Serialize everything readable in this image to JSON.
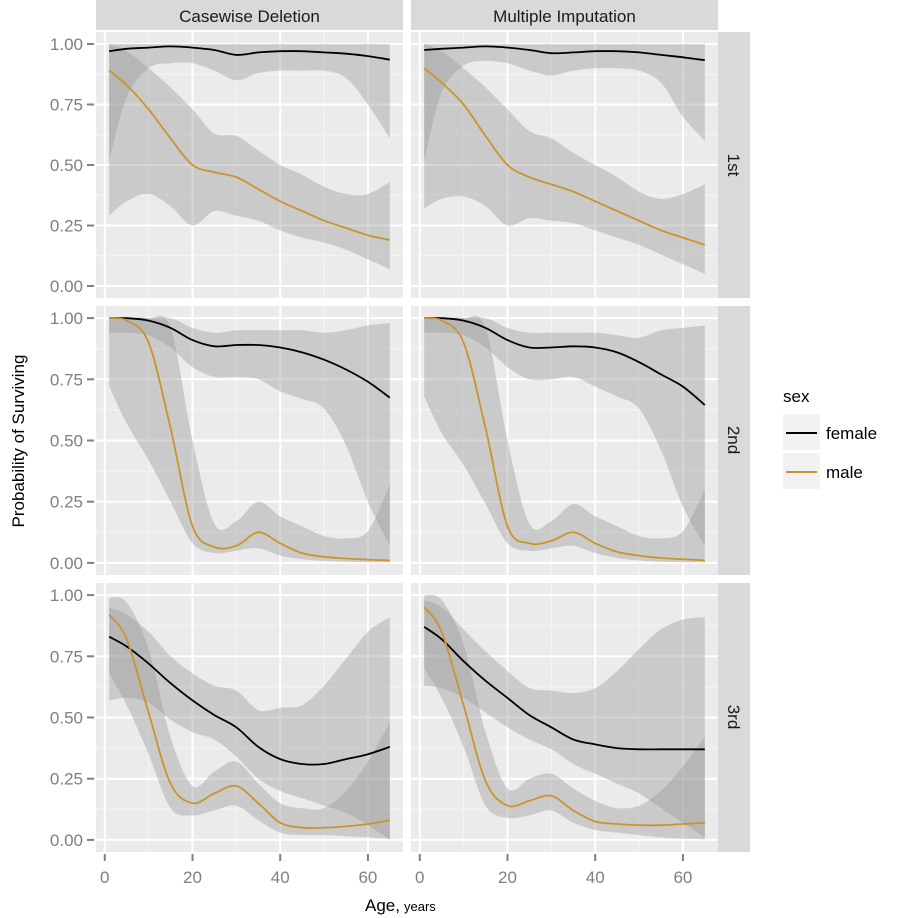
{
  "chart_data": {
    "type": "line",
    "title": "",
    "xlabel": "Age,",
    "xlabel_unit": "years",
    "ylabel": "Probability of Surviving",
    "xlim": [
      -2,
      68
    ],
    "ylim": [
      0,
      1
    ],
    "x_ticks": [
      0,
      20,
      40,
      60
    ],
    "x_tick_labels": [
      "0",
      "20",
      "40",
      "60"
    ],
    "y_ticks": [
      0,
      0.25,
      0.5,
      0.75,
      1.0
    ],
    "y_tick_labels": [
      "0.00",
      "0.25",
      "0.50",
      "0.75",
      "1.00"
    ],
    "grid": true,
    "facet_columns": [
      "Casewise Deletion",
      "Multiple Imputation"
    ],
    "facet_rows": [
      "1st",
      "2nd",
      "3rd"
    ],
    "legend": {
      "title": "sex",
      "position": "right",
      "entries": [
        {
          "name": "female",
          "color": "#000000"
        },
        {
          "name": "male",
          "color": "#C8952D"
        }
      ]
    },
    "x": [
      1,
      5,
      10,
      15,
      20,
      25,
      30,
      35,
      40,
      45,
      50,
      55,
      60,
      65
    ],
    "panels": [
      {
        "column": "Casewise Deletion",
        "row": "1st",
        "series": [
          {
            "name": "female",
            "values": [
              0.97,
              0.98,
              0.985,
              0.99,
              0.985,
              0.975,
              0.955,
              0.965,
              0.97,
              0.97,
              0.965,
              0.96,
              0.95,
              0.935
            ],
            "lower": [
              0.52,
              0.78,
              0.9,
              0.92,
              0.92,
              0.89,
              0.85,
              0.88,
              0.89,
              0.89,
              0.89,
              0.86,
              0.75,
              0.61
            ],
            "upper": [
              1.0,
              1.0,
              1.0,
              1.0,
              1.0,
              1.0,
              1.0,
              1.0,
              1.0,
              1.0,
              1.0,
              1.0,
              1.0,
              1.0
            ]
          },
          {
            "name": "male",
            "values": [
              0.89,
              0.83,
              0.73,
              0.61,
              0.5,
              0.47,
              0.45,
              0.4,
              0.35,
              0.31,
              0.27,
              0.24,
              0.21,
              0.19
            ],
            "lower": [
              0.29,
              0.35,
              0.38,
              0.33,
              0.25,
              0.31,
              0.29,
              0.27,
              0.23,
              0.2,
              0.18,
              0.15,
              0.11,
              0.07
            ],
            "upper": [
              1.0,
              0.97,
              0.9,
              0.82,
              0.73,
              0.63,
              0.62,
              0.56,
              0.5,
              0.46,
              0.41,
              0.38,
              0.38,
              0.43
            ]
          }
        ]
      },
      {
        "column": "Multiple Imputation",
        "row": "1st",
        "series": [
          {
            "name": "female",
            "values": [
              0.975,
              0.98,
              0.985,
              0.99,
              0.985,
              0.975,
              0.962,
              0.965,
              0.97,
              0.97,
              0.965,
              0.955,
              0.945,
              0.933
            ],
            "lower": [
              0.52,
              0.8,
              0.91,
              0.93,
              0.92,
              0.89,
              0.87,
              0.89,
              0.9,
              0.9,
              0.89,
              0.84,
              0.7,
              0.6
            ],
            "upper": [
              1.0,
              1.0,
              1.0,
              1.0,
              1.0,
              1.0,
              1.0,
              1.0,
              1.0,
              1.0,
              1.0,
              1.0,
              1.0,
              1.0
            ]
          },
          {
            "name": "male",
            "values": [
              0.9,
              0.84,
              0.75,
              0.62,
              0.5,
              0.45,
              0.42,
              0.39,
              0.35,
              0.31,
              0.27,
              0.23,
              0.2,
              0.17
            ],
            "lower": [
              0.32,
              0.36,
              0.37,
              0.33,
              0.25,
              0.28,
              0.27,
              0.26,
              0.23,
              0.2,
              0.17,
              0.13,
              0.09,
              0.05
            ],
            "upper": [
              1.0,
              0.97,
              0.9,
              0.82,
              0.73,
              0.64,
              0.61,
              0.55,
              0.5,
              0.45,
              0.39,
              0.36,
              0.38,
              0.42
            ]
          }
        ]
      },
      {
        "column": "Casewise Deletion",
        "row": "2nd",
        "series": [
          {
            "name": "female",
            "values": [
              1.0,
              1.0,
              0.99,
              0.96,
              0.91,
              0.885,
              0.89,
              0.89,
              0.88,
              0.86,
              0.83,
              0.79,
              0.74,
              0.675
            ],
            "lower": [
              0.94,
              0.94,
              0.93,
              0.88,
              0.8,
              0.76,
              0.76,
              0.75,
              0.7,
              0.67,
              0.63,
              0.48,
              0.25,
              0.07
            ],
            "upper": [
              1.0,
              1.0,
              1.0,
              1.0,
              0.96,
              0.94,
              0.95,
              0.95,
              0.95,
              0.95,
              0.94,
              0.95,
              0.97,
              0.98
            ]
          },
          {
            "name": "male",
            "values": [
              1.0,
              0.99,
              0.9,
              0.55,
              0.15,
              0.065,
              0.07,
              0.125,
              0.08,
              0.04,
              0.025,
              0.018,
              0.013,
              0.01
            ],
            "lower": [
              0.72,
              0.57,
              0.42,
              0.25,
              0.08,
              0.04,
              0.05,
              0.06,
              0.03,
              0.015,
              0.008,
              0.005,
              0.003,
              0.002
            ],
            "upper": [
              1.0,
              1.0,
              1.0,
              0.96,
              0.5,
              0.16,
              0.17,
              0.25,
              0.19,
              0.15,
              0.11,
              0.1,
              0.13,
              0.32
            ]
          }
        ]
      },
      {
        "column": "Multiple Imputation",
        "row": "2nd",
        "series": [
          {
            "name": "female",
            "values": [
              1.0,
              1.0,
              0.99,
              0.96,
              0.91,
              0.88,
              0.88,
              0.885,
              0.88,
              0.86,
              0.82,
              0.77,
              0.72,
              0.645
            ],
            "lower": [
              0.94,
              0.94,
              0.93,
              0.88,
              0.8,
              0.75,
              0.75,
              0.76,
              0.72,
              0.68,
              0.63,
              0.46,
              0.23,
              0.07
            ],
            "upper": [
              1.0,
              1.0,
              1.0,
              1.0,
              0.96,
              0.94,
              0.94,
              0.94,
              0.94,
              0.93,
              0.92,
              0.95,
              0.96,
              0.97
            ]
          },
          {
            "name": "male",
            "values": [
              1.0,
              0.99,
              0.9,
              0.55,
              0.15,
              0.08,
              0.09,
              0.125,
              0.08,
              0.045,
              0.03,
              0.02,
              0.015,
              0.01
            ],
            "lower": [
              0.68,
              0.53,
              0.4,
              0.24,
              0.08,
              0.05,
              0.06,
              0.07,
              0.04,
              0.02,
              0.01,
              0.005,
              0.003,
              0.002
            ],
            "upper": [
              1.0,
              1.0,
              1.0,
              0.96,
              0.5,
              0.16,
              0.17,
              0.24,
              0.19,
              0.15,
              0.11,
              0.1,
              0.13,
              0.3
            ]
          }
        ]
      },
      {
        "column": "Casewise Deletion",
        "row": "3rd",
        "series": [
          {
            "name": "female",
            "values": [
              0.83,
              0.79,
              0.72,
              0.64,
              0.57,
              0.51,
              0.46,
              0.38,
              0.33,
              0.31,
              0.31,
              0.33,
              0.35,
              0.38
            ],
            "lower": [
              0.57,
              0.58,
              0.56,
              0.49,
              0.44,
              0.41,
              0.34,
              0.25,
              0.2,
              0.17,
              0.14,
              0.11,
              0.06,
              0.0
            ],
            "upper": [
              0.95,
              0.92,
              0.85,
              0.75,
              0.68,
              0.63,
              0.61,
              0.53,
              0.54,
              0.55,
              0.63,
              0.74,
              0.85,
              0.91
            ]
          },
          {
            "name": "male",
            "values": [
              0.92,
              0.82,
              0.52,
              0.23,
              0.15,
              0.19,
              0.22,
              0.15,
              0.07,
              0.05,
              0.05,
              0.055,
              0.065,
              0.08
            ],
            "lower": [
              0.68,
              0.55,
              0.35,
              0.13,
              0.1,
              0.12,
              0.14,
              0.08,
              0.03,
              0.02,
              0.02,
              0.015,
              0.01,
              0.005
            ],
            "upper": [
              0.99,
              0.97,
              0.78,
              0.42,
              0.22,
              0.28,
              0.32,
              0.23,
              0.15,
              0.13,
              0.13,
              0.2,
              0.32,
              0.48
            ]
          }
        ]
      },
      {
        "column": "Multiple Imputation",
        "row": "3rd",
        "series": [
          {
            "name": "female",
            "values": [
              0.87,
              0.82,
              0.73,
              0.65,
              0.58,
              0.51,
              0.46,
              0.41,
              0.39,
              0.375,
              0.37,
              0.37,
              0.37,
              0.37
            ],
            "lower": [
              0.63,
              0.62,
              0.58,
              0.52,
              0.46,
              0.41,
              0.37,
              0.31,
              0.27,
              0.23,
              0.19,
              0.13,
              0.07,
              0.01
            ],
            "upper": [
              0.98,
              0.95,
              0.86,
              0.77,
              0.69,
              0.62,
              0.61,
              0.6,
              0.62,
              0.69,
              0.78,
              0.86,
              0.9,
              0.91
            ]
          },
          {
            "name": "male",
            "values": [
              0.95,
              0.85,
              0.55,
              0.24,
              0.14,
              0.16,
              0.18,
              0.12,
              0.075,
              0.065,
              0.06,
              0.06,
              0.065,
              0.07
            ],
            "lower": [
              0.7,
              0.58,
              0.38,
              0.14,
              0.09,
              0.1,
              0.12,
              0.07,
              0.04,
              0.03,
              0.02,
              0.01,
              0.005,
              0.003
            ],
            "upper": [
              1.0,
              0.98,
              0.8,
              0.44,
              0.21,
              0.25,
              0.27,
              0.21,
              0.16,
              0.13,
              0.14,
              0.2,
              0.3,
              0.42
            ]
          }
        ]
      }
    ]
  }
}
